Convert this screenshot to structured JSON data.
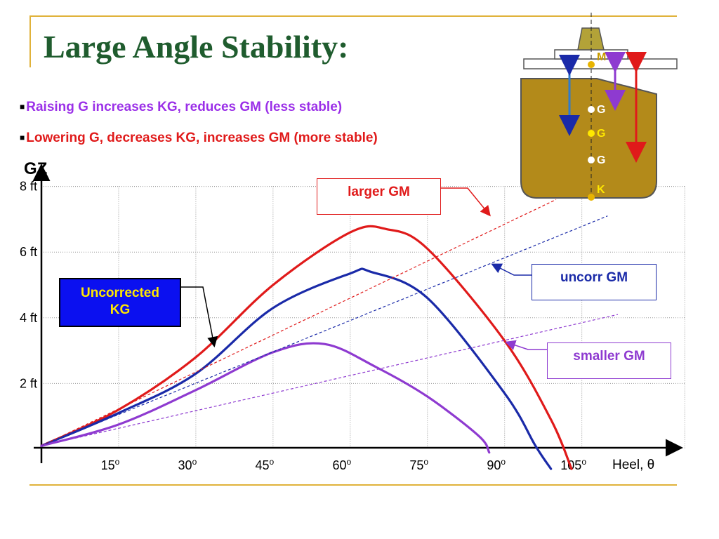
{
  "slide": {
    "title": "Large Angle Stability:",
    "bullets": [
      {
        "marker": "■",
        "text": "Raising G increases KG, reduces GM (less stable)",
        "color": "#9b30e8"
      },
      {
        "marker": "■",
        "text": "Lowering G, decreases KG, increases GM (more stable)",
        "color": "#e01a1a"
      }
    ],
    "callouts": {
      "larger": "larger GM",
      "uncorr": "uncorr GM",
      "smaller": "smaller GM",
      "kg_line1": "Uncorrected",
      "kg_line2": "KG"
    },
    "ship_labels": {
      "m": "M",
      "g1": "G",
      "g2": "G",
      "g3": "G",
      "k": "K"
    }
  },
  "colors": {
    "title": "#1f5c2e",
    "larger": "#e01a1a",
    "uncorr": "#1a2aa8",
    "smaller": "#8e3ad0",
    "kg_box": "#0b10f0",
    "kg_text": "#ffe800",
    "hull": "#b38a1a",
    "rule": "#e0b23a"
  },
  "chart_data": {
    "type": "line",
    "title": "",
    "ylabel": "GZ",
    "xlabel": "Heel, θ",
    "xlim": [
      0,
      125
    ],
    "ylim": [
      0,
      8
    ],
    "x_ticks": [
      {
        "v": 15,
        "label": "15"
      },
      {
        "v": 30,
        "label": "30"
      },
      {
        "v": 45,
        "label": "45"
      },
      {
        "v": 60,
        "label": "60"
      },
      {
        "v": 75,
        "label": "75"
      },
      {
        "v": 90,
        "label": "90"
      },
      {
        "v": 105,
        "label": "105"
      }
    ],
    "x_tick_suffix": "o",
    "y_ticks": [
      {
        "v": 2,
        "label": "2 ft"
      },
      {
        "v": 4,
        "label": "4 ft"
      },
      {
        "v": 6,
        "label": "6 ft"
      },
      {
        "v": 8,
        "label": "8 ft"
      }
    ],
    "grid": true,
    "series": [
      {
        "key": "larger",
        "color": "#e01a1a",
        "style": "solid",
        "points": [
          [
            0,
            0.1
          ],
          [
            15,
            1.2
          ],
          [
            30,
            2.8
          ],
          [
            45,
            5.0
          ],
          [
            60,
            6.6
          ],
          [
            67,
            6.7
          ],
          [
            75,
            6.1
          ],
          [
            90,
            3.3
          ],
          [
            99,
            0.9
          ],
          [
            103,
            -0.6
          ]
        ]
      },
      {
        "key": "uncorr",
        "color": "#1a2aa8",
        "style": "solid",
        "points": [
          [
            0,
            0.1
          ],
          [
            15,
            1.1
          ],
          [
            30,
            2.3
          ],
          [
            45,
            4.3
          ],
          [
            60,
            5.35
          ],
          [
            64,
            5.4
          ],
          [
            75,
            4.6
          ],
          [
            90,
            1.7
          ],
          [
            96,
            0.1
          ],
          [
            99,
            -0.6
          ]
        ]
      },
      {
        "key": "smaller",
        "color": "#8e3ad0",
        "style": "solid",
        "points": [
          [
            0,
            0.1
          ],
          [
            15,
            0.75
          ],
          [
            30,
            1.8
          ],
          [
            45,
            2.95
          ],
          [
            55,
            3.2
          ],
          [
            65,
            2.5
          ],
          [
            75,
            1.6
          ],
          [
            85,
            0.4
          ],
          [
            87,
            -0.1
          ]
        ]
      },
      {
        "key": "larger-tangent",
        "color": "#e01a1a",
        "style": "dashed",
        "points": [
          [
            0,
            0.1
          ],
          [
            100,
            7.6
          ]
        ]
      },
      {
        "key": "uncorr-tangent",
        "color": "#1a2aa8",
        "style": "dashed",
        "points": [
          [
            0,
            0.1
          ],
          [
            110,
            7.1
          ]
        ]
      },
      {
        "key": "smaller-tangent",
        "color": "#8e3ad0",
        "style": "dashed",
        "points": [
          [
            0,
            0.1
          ],
          [
            112,
            4.1
          ]
        ]
      }
    ]
  }
}
